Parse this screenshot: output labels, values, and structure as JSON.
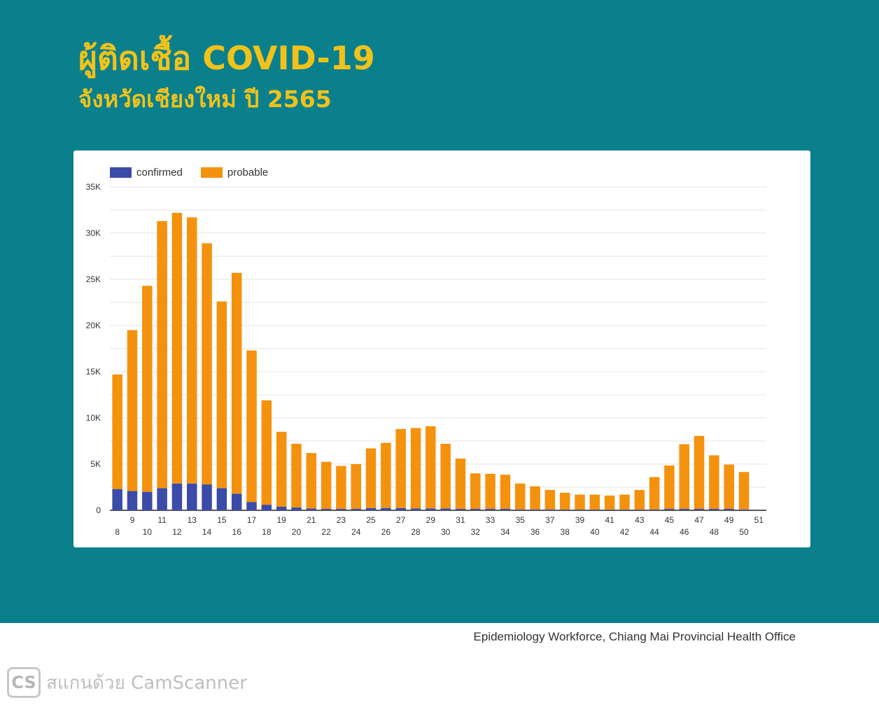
{
  "header": {
    "title": "ผู้ติดเชื้อ COVID-19",
    "subtitle": "จังหวัดเชียงใหม่ ปี 2565"
  },
  "colors": {
    "background": "#0a808c",
    "title": "#f2c21b",
    "confirmed": "#3b4ba8",
    "probable": "#f4920e"
  },
  "legend": {
    "confirmed_label": "confirmed",
    "probable_label": "probable"
  },
  "chart_data": {
    "type": "bar",
    "stacked": true,
    "title": "",
    "xlabel": "",
    "ylabel": "",
    "ylim": [
      0,
      35000
    ],
    "y_ticks": [
      "0",
      "5K",
      "10K",
      "15K",
      "20K",
      "25K",
      "30K",
      "35K"
    ],
    "y_tick_values": [
      0,
      5000,
      10000,
      15000,
      20000,
      25000,
      30000,
      35000
    ],
    "grid": true,
    "legend_position": "top-left",
    "categories": [
      "8",
      "9",
      "10",
      "11",
      "12",
      "13",
      "14",
      "15",
      "16",
      "17",
      "18",
      "19",
      "20",
      "21",
      "22",
      "23",
      "24",
      "25",
      "26",
      "27",
      "28",
      "29",
      "30",
      "31",
      "32",
      "33",
      "34",
      "35",
      "36",
      "37",
      "38",
      "39",
      "40",
      "41",
      "42",
      "43",
      "44",
      "45",
      "46",
      "47",
      "48",
      "49",
      "50",
      "51"
    ],
    "series": [
      {
        "name": "confirmed",
        "values": [
          2300,
          2100,
          2000,
          2400,
          2900,
          2900,
          2800,
          2400,
          1800,
          900,
          600,
          400,
          300,
          200,
          150,
          150,
          150,
          250,
          250,
          250,
          200,
          200,
          200,
          150,
          150,
          150,
          150,
          100,
          100,
          100,
          80,
          80,
          80,
          80,
          80,
          80,
          100,
          150,
          150,
          150,
          150,
          150,
          100,
          0
        ]
      },
      {
        "name": "probable",
        "values": [
          12400,
          17400,
          22300,
          28900,
          29300,
          28800,
          26100,
          20200,
          23900,
          16400,
          11300,
          8100,
          6900,
          6000,
          5100,
          4650,
          4850,
          6450,
          7050,
          8550,
          8700,
          8900,
          7000,
          5450,
          3850,
          3800,
          3700,
          2800,
          2500,
          2100,
          1820,
          1620,
          1620,
          1520,
          1620,
          2120,
          3500,
          4700,
          7000,
          7900,
          5800,
          4800,
          4050,
          0
        ]
      }
    ]
  },
  "footer": {
    "source": "Epidemiology Workforce, Chiang Mai Provincial Health Office"
  },
  "watermark": {
    "logo": "CS",
    "text": "สแกนด้วย CamScanner"
  }
}
